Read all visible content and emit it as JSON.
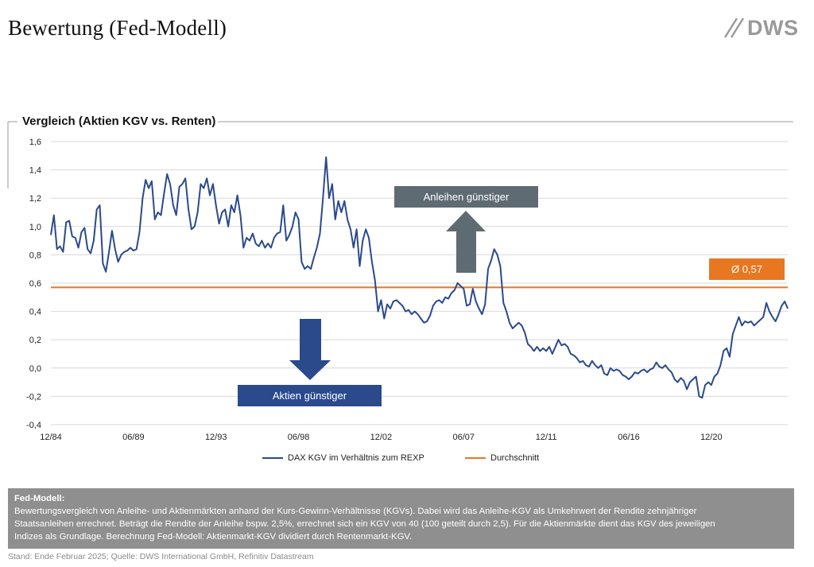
{
  "page": {
    "title": "Bewertung (Fed-Modell)",
    "logo_text": "DWS"
  },
  "chart_data": {
    "type": "line",
    "title": "Vergleich (Aktien KGV vs. Renten)",
    "x_tick_labels": [
      "12/84",
      "06/89",
      "12/93",
      "06/98",
      "12/02",
      "06/07",
      "12/11",
      "06/16",
      "12/20"
    ],
    "x_range": [
      "1984-12",
      "2025-02"
    ],
    "y_tick_labels": [
      "1,6",
      "1,4",
      "1,2",
      "1,0",
      "0,8",
      "0,6",
      "0,4",
      "0,2",
      "0,0",
      "-0,2",
      "-0,4"
    ],
    "ylim": [
      -0.4,
      1.6
    ],
    "grid": true,
    "legend_position": "bottom",
    "series": [
      {
        "name": "DAX KGV im Verhältnis zum REXP",
        "color": "#2a4a8c",
        "points": [
          [
            "1984-12",
            0.94
          ],
          [
            "1985-02",
            1.08
          ],
          [
            "1985-04",
            0.84
          ],
          [
            "1985-06",
            0.86
          ],
          [
            "1985-08",
            0.82
          ],
          [
            "1985-10",
            1.03
          ],
          [
            "1985-12",
            1.04
          ],
          [
            "1986-02",
            0.93
          ],
          [
            "1986-04",
            0.92
          ],
          [
            "1986-06",
            0.85
          ],
          [
            "1986-08",
            0.96
          ],
          [
            "1986-10",
            0.99
          ],
          [
            "1986-12",
            0.84
          ],
          [
            "1987-02",
            0.81
          ],
          [
            "1987-04",
            0.9
          ],
          [
            "1987-06",
            1.12
          ],
          [
            "1987-08",
            1.15
          ],
          [
            "1987-10",
            0.74
          ],
          [
            "1987-12",
            0.68
          ],
          [
            "1988-02",
            0.82
          ],
          [
            "1988-04",
            0.97
          ],
          [
            "1988-06",
            0.84
          ],
          [
            "1988-08",
            0.75
          ],
          [
            "1988-10",
            0.8
          ],
          [
            "1988-12",
            0.82
          ],
          [
            "1989-02",
            0.83
          ],
          [
            "1989-04",
            0.85
          ],
          [
            "1989-06",
            0.83
          ],
          [
            "1989-08",
            0.84
          ],
          [
            "1989-10",
            0.96
          ],
          [
            "1989-12",
            1.2
          ],
          [
            "1990-02",
            1.33
          ],
          [
            "1990-04",
            1.27
          ],
          [
            "1990-06",
            1.32
          ],
          [
            "1990-08",
            1.05
          ],
          [
            "1990-10",
            1.1
          ],
          [
            "1990-12",
            1.08
          ],
          [
            "1991-02",
            1.23
          ],
          [
            "1991-04",
            1.37
          ],
          [
            "1991-06",
            1.3
          ],
          [
            "1991-08",
            1.15
          ],
          [
            "1991-10",
            1.08
          ],
          [
            "1991-12",
            1.28
          ],
          [
            "1992-02",
            1.3
          ],
          [
            "1992-04",
            1.34
          ],
          [
            "1992-06",
            1.12
          ],
          [
            "1992-08",
            0.98
          ],
          [
            "1992-10",
            1.0
          ],
          [
            "1992-12",
            1.1
          ],
          [
            "1993-02",
            1.3
          ],
          [
            "1993-04",
            1.27
          ],
          [
            "1993-06",
            1.34
          ],
          [
            "1993-08",
            1.22
          ],
          [
            "1993-10",
            1.3
          ],
          [
            "1993-12",
            1.15
          ],
          [
            "1994-02",
            1.02
          ],
          [
            "1994-04",
            1.1
          ],
          [
            "1994-06",
            1.12
          ],
          [
            "1994-08",
            1.0
          ],
          [
            "1994-10",
            1.15
          ],
          [
            "1994-12",
            1.1
          ],
          [
            "1995-02",
            1.22
          ],
          [
            "1995-04",
            1.08
          ],
          [
            "1995-06",
            0.85
          ],
          [
            "1995-08",
            0.92
          ],
          [
            "1995-10",
            0.9
          ],
          [
            "1995-12",
            0.95
          ],
          [
            "1996-02",
            0.88
          ],
          [
            "1996-04",
            0.86
          ],
          [
            "1996-06",
            0.9
          ],
          [
            "1996-08",
            0.85
          ],
          [
            "1996-10",
            0.88
          ],
          [
            "1996-12",
            0.85
          ],
          [
            "1997-02",
            0.92
          ],
          [
            "1997-04",
            0.95
          ],
          [
            "1997-06",
            0.96
          ],
          [
            "1997-08",
            1.15
          ],
          [
            "1997-10",
            0.9
          ],
          [
            "1997-12",
            0.94
          ],
          [
            "1998-02",
            1.0
          ],
          [
            "1998-04",
            1.1
          ],
          [
            "1998-06",
            1.05
          ],
          [
            "1998-08",
            0.75
          ],
          [
            "1998-10",
            0.7
          ],
          [
            "1998-12",
            0.72
          ],
          [
            "1999-02",
            0.7
          ],
          [
            "1999-04",
            0.78
          ],
          [
            "1999-06",
            0.85
          ],
          [
            "1999-08",
            0.95
          ],
          [
            "1999-10",
            1.2
          ],
          [
            "1999-12",
            1.49
          ],
          [
            "2000-02",
            1.2
          ],
          [
            "2000-04",
            1.3
          ],
          [
            "2000-06",
            1.05
          ],
          [
            "2000-08",
            1.18
          ],
          [
            "2000-10",
            1.1
          ],
          [
            "2000-12",
            1.18
          ],
          [
            "2001-02",
            1.05
          ],
          [
            "2001-04",
            0.98
          ],
          [
            "2001-06",
            0.85
          ],
          [
            "2001-08",
            0.98
          ],
          [
            "2001-10",
            0.72
          ],
          [
            "2001-12",
            0.9
          ],
          [
            "2002-02",
            0.98
          ],
          [
            "2002-04",
            0.92
          ],
          [
            "2002-06",
            0.75
          ],
          [
            "2002-08",
            0.62
          ],
          [
            "2002-10",
            0.4
          ],
          [
            "2002-12",
            0.48
          ],
          [
            "2003-02",
            0.35
          ],
          [
            "2003-04",
            0.45
          ],
          [
            "2003-06",
            0.42
          ],
          [
            "2003-08",
            0.47
          ],
          [
            "2003-10",
            0.48
          ],
          [
            "2003-12",
            0.46
          ],
          [
            "2004-02",
            0.44
          ],
          [
            "2004-04",
            0.4
          ],
          [
            "2004-06",
            0.41
          ],
          [
            "2004-08",
            0.38
          ],
          [
            "2004-10",
            0.4
          ],
          [
            "2004-12",
            0.38
          ],
          [
            "2005-02",
            0.35
          ],
          [
            "2005-04",
            0.32
          ],
          [
            "2005-06",
            0.33
          ],
          [
            "2005-08",
            0.37
          ],
          [
            "2005-10",
            0.44
          ],
          [
            "2005-12",
            0.47
          ],
          [
            "2006-02",
            0.48
          ],
          [
            "2006-04",
            0.46
          ],
          [
            "2006-06",
            0.5
          ],
          [
            "2006-08",
            0.49
          ],
          [
            "2006-10",
            0.53
          ],
          [
            "2006-12",
            0.55
          ],
          [
            "2007-02",
            0.6
          ],
          [
            "2007-04",
            0.58
          ],
          [
            "2007-06",
            0.56
          ],
          [
            "2007-08",
            0.44
          ],
          [
            "2007-10",
            0.45
          ],
          [
            "2007-12",
            0.56
          ],
          [
            "2008-02",
            0.47
          ],
          [
            "2008-04",
            0.42
          ],
          [
            "2008-06",
            0.38
          ],
          [
            "2008-08",
            0.45
          ],
          [
            "2008-10",
            0.7
          ],
          [
            "2008-12",
            0.76
          ],
          [
            "2009-02",
            0.84
          ],
          [
            "2009-04",
            0.8
          ],
          [
            "2009-06",
            0.72
          ],
          [
            "2009-08",
            0.46
          ],
          [
            "2009-10",
            0.4
          ],
          [
            "2009-12",
            0.32
          ],
          [
            "2010-02",
            0.28
          ],
          [
            "2010-04",
            0.3
          ],
          [
            "2010-06",
            0.32
          ],
          [
            "2010-08",
            0.3
          ],
          [
            "2010-10",
            0.25
          ],
          [
            "2010-12",
            0.17
          ],
          [
            "2011-02",
            0.15
          ],
          [
            "2011-04",
            0.12
          ],
          [
            "2011-06",
            0.15
          ],
          [
            "2011-08",
            0.12
          ],
          [
            "2011-10",
            0.14
          ],
          [
            "2011-12",
            0.12
          ],
          [
            "2012-02",
            0.15
          ],
          [
            "2012-04",
            0.1
          ],
          [
            "2012-06",
            0.15
          ],
          [
            "2012-08",
            0.2
          ],
          [
            "2012-10",
            0.16
          ],
          [
            "2012-12",
            0.17
          ],
          [
            "2013-02",
            0.15
          ],
          [
            "2013-04",
            0.1
          ],
          [
            "2013-06",
            0.09
          ],
          [
            "2013-08",
            0.07
          ],
          [
            "2013-10",
            0.04
          ],
          [
            "2013-12",
            0.05
          ],
          [
            "2014-02",
            0.02
          ],
          [
            "2014-04",
            0.01
          ],
          [
            "2014-06",
            0.05
          ],
          [
            "2014-08",
            0.02
          ],
          [
            "2014-10",
            0.0
          ],
          [
            "2014-12",
            0.02
          ],
          [
            "2015-02",
            -0.04
          ],
          [
            "2015-04",
            -0.05
          ],
          [
            "2015-06",
            0.0
          ],
          [
            "2015-08",
            -0.02
          ],
          [
            "2015-10",
            -0.01
          ],
          [
            "2015-12",
            -0.02
          ],
          [
            "2016-02",
            -0.05
          ],
          [
            "2016-04",
            -0.06
          ],
          [
            "2016-06",
            -0.08
          ],
          [
            "2016-08",
            -0.06
          ],
          [
            "2016-10",
            -0.03
          ],
          [
            "2016-12",
            -0.04
          ],
          [
            "2017-02",
            -0.02
          ],
          [
            "2017-04",
            -0.01
          ],
          [
            "2017-06",
            -0.03
          ],
          [
            "2017-08",
            -0.01
          ],
          [
            "2017-10",
            0.0
          ],
          [
            "2017-12",
            0.04
          ],
          [
            "2018-02",
            0.01
          ],
          [
            "2018-04",
            0.0
          ],
          [
            "2018-06",
            0.02
          ],
          [
            "2018-08",
            -0.01
          ],
          [
            "2018-10",
            -0.03
          ],
          [
            "2018-12",
            -0.08
          ],
          [
            "2019-02",
            -0.1
          ],
          [
            "2019-04",
            -0.07
          ],
          [
            "2019-06",
            -0.09
          ],
          [
            "2019-08",
            -0.15
          ],
          [
            "2019-10",
            -0.1
          ],
          [
            "2019-12",
            -0.08
          ],
          [
            "2020-02",
            -0.06
          ],
          [
            "2020-04",
            -0.2
          ],
          [
            "2020-06",
            -0.21
          ],
          [
            "2020-08",
            -0.12
          ],
          [
            "2020-10",
            -0.1
          ],
          [
            "2020-12",
            -0.12
          ],
          [
            "2021-02",
            -0.06
          ],
          [
            "2021-04",
            -0.04
          ],
          [
            "2021-06",
            0.02
          ],
          [
            "2021-08",
            0.12
          ],
          [
            "2021-10",
            0.14
          ],
          [
            "2021-12",
            0.08
          ],
          [
            "2022-02",
            0.24
          ],
          [
            "2022-04",
            0.3
          ],
          [
            "2022-06",
            0.36
          ],
          [
            "2022-08",
            0.3
          ],
          [
            "2022-10",
            0.33
          ],
          [
            "2022-12",
            0.32
          ],
          [
            "2023-02",
            0.33
          ],
          [
            "2023-04",
            0.3
          ],
          [
            "2023-06",
            0.32
          ],
          [
            "2023-08",
            0.34
          ],
          [
            "2023-10",
            0.36
          ],
          [
            "2023-12",
            0.46
          ],
          [
            "2024-02",
            0.4
          ],
          [
            "2024-04",
            0.36
          ],
          [
            "2024-06",
            0.33
          ],
          [
            "2024-08",
            0.38
          ],
          [
            "2024-10",
            0.44
          ],
          [
            "2024-12",
            0.47
          ],
          [
            "2025-02",
            0.42
          ]
        ]
      },
      {
        "name": "Durchschnitt",
        "color": "#e87722",
        "value": 0.57
      }
    ],
    "annotations": [
      {
        "label": "Ø 0,57",
        "color": "#e87722"
      },
      {
        "label": "Anleihen günstiger",
        "color": "#5f6b73"
      },
      {
        "label": "Aktien günstiger",
        "color": "#2a4a8c"
      }
    ]
  },
  "info_box": {
    "title": "Fed-Modell:",
    "lines": [
      "Bewertungsvergleich von Anleihe- und Aktienmärkten anhand der Kurs-Gewinn-Verhältnisse (KGVs). Dabei wird das Anleihe-KGV als Umkehrwert der Rendite zehnjähriger",
      "Staatsanleihen errechnet. Beträgt  die Rendite der Anleihe bspw. 2,5%, errechnet sich ein KGV von 40 (100 geteilt durch 2,5). Für die Aktienmärkte dient das KGV des jeweiligen",
      "Indizes als Grundlage. Berechnung Fed-Modell: Aktienmarkt-KGV dividiert durch Rentenmarkt-KGV."
    ]
  },
  "footer": {
    "source": "Stand: Ende Februar 2025; Quelle: DWS International GmbH, Refinitiv Datastream"
  }
}
